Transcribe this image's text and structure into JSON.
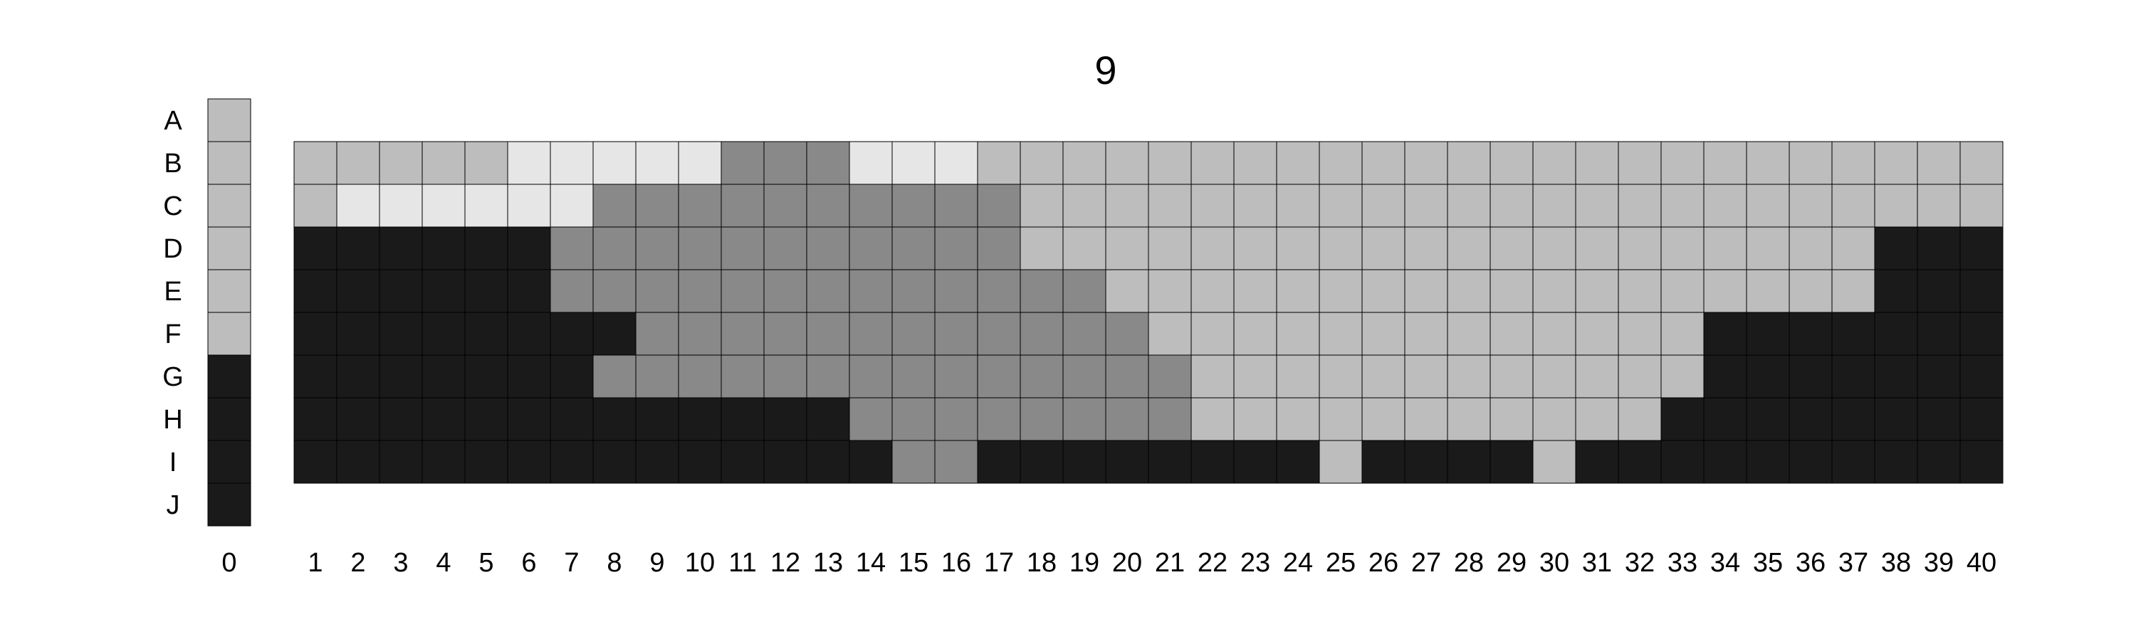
{
  "chart_data": {
    "type": "heatmap",
    "title": "9",
    "row_labels": [
      "A",
      "B",
      "C",
      "D",
      "E",
      "F",
      "G",
      "H",
      "I",
      "J"
    ],
    "column_labels": [
      "0",
      "1",
      "2",
      "3",
      "4",
      "5",
      "6",
      "7",
      "8",
      "9",
      "10",
      "11",
      "12",
      "13",
      "14",
      "15",
      "16",
      "17",
      "18",
      "19",
      "20",
      "21",
      "22",
      "23",
      "24",
      "25",
      "26",
      "27",
      "28",
      "29",
      "30",
      "31",
      "32",
      "33",
      "34",
      "35",
      "36",
      "37",
      "38",
      "39",
      "40"
    ],
    "levels": [
      {
        "value": 0,
        "color": "#e6e6e6"
      },
      {
        "value": 1,
        "color": "#bdbdbd"
      },
      {
        "value": 2,
        "color": "#898989"
      },
      {
        "value": 3,
        "color": "#1a1a1a"
      }
    ],
    "column_0": [
      "1",
      "1",
      "1",
      "1",
      "1",
      "1",
      "3",
      "3",
      "3",
      "3"
    ],
    "grid_rows": [
      "B",
      "C",
      "D",
      "E",
      "F",
      "G",
      "H",
      "I"
    ],
    "grid": [
      "1111100000222000111111111111111111111111",
      "1000000222222222211111111111111111111111",
      "3333332222222222211111111111111111111333",
      "3333332222222222222111111111111111111333",
      "3333333322222222222211111111111113333333",
      "3333333222222222222221111111111113333333",
      "3333333333333222222221111111111133333333",
      "3333333333333322333333331333313333333333"
    ],
    "grid_lines": true
  }
}
